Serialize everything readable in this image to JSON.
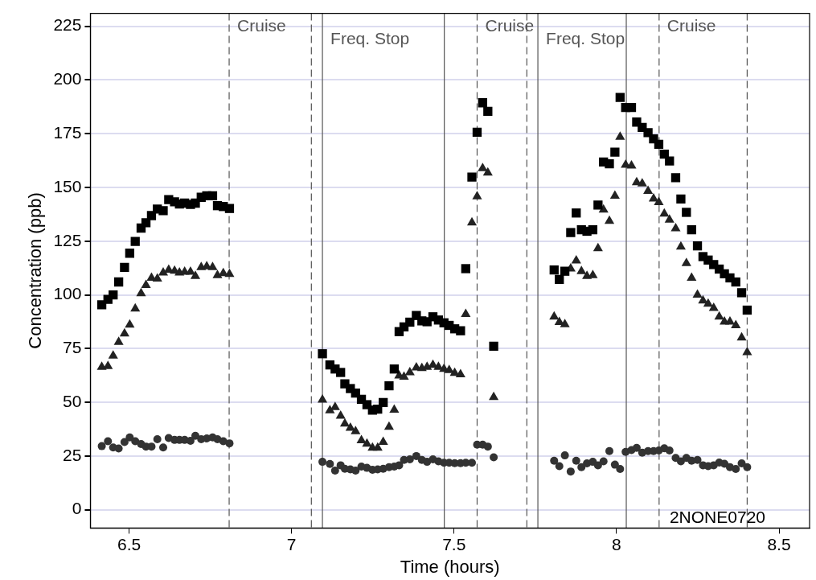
{
  "chart_data": {
    "type": "scatter",
    "xlabel": "Time (hours)",
    "ylabel": "Concentration (ppb)",
    "xlim": [
      6.381,
      8.594
    ],
    "ylim": [
      -8.5,
      231
    ],
    "xticks": [
      6.5,
      7,
      7.5,
      8,
      8.5
    ],
    "yticks": [
      0,
      25,
      50,
      75,
      100,
      125,
      150,
      175,
      200,
      225
    ],
    "grid": "y",
    "legend": false,
    "x": [
      6.416,
      6.435,
      6.451,
      6.468,
      6.486,
      6.502,
      6.519,
      6.537,
      6.552,
      6.569,
      6.587,
      6.605,
      6.622,
      6.64,
      6.655,
      6.671,
      6.689,
      6.704,
      6.722,
      6.739,
      6.757,
      6.772,
      6.79,
      6.809,
      7.095,
      7.118,
      7.134,
      7.151,
      7.164,
      7.181,
      7.197,
      7.215,
      7.232,
      7.249,
      7.265,
      7.282,
      7.3,
      7.316,
      7.331,
      7.346,
      7.364,
      7.384,
      7.401,
      7.417,
      7.435,
      7.452,
      7.469,
      7.485,
      7.502,
      7.52,
      7.536,
      7.555,
      7.571,
      7.588,
      7.604,
      7.622,
      7.808,
      7.824,
      7.841,
      7.859,
      7.876,
      7.892,
      7.909,
      7.927,
      7.943,
      7.96,
      7.978,
      7.995,
      8.011,
      8.028,
      8.046,
      8.062,
      8.079,
      8.097,
      8.114,
      8.13,
      8.147,
      8.163,
      8.182,
      8.198,
      8.215,
      8.231,
      8.249,
      8.266,
      8.282,
      8.299,
      8.316,
      8.332,
      8.349,
      8.367,
      8.385,
      8.402
    ],
    "series": [
      {
        "color": "#000000",
        "marker": "square",
        "values": [
          95.4,
          97.9,
          100,
          106,
          112.8,
          119.4,
          124.9,
          131.1,
          133.6,
          136.9,
          139.9,
          139.2,
          144.3,
          143.3,
          142.3,
          142.7,
          142.1,
          142.7,
          145.4,
          146.1,
          146.1,
          141.5,
          141.1,
          140.2,
          72.6,
          67.4,
          65.5,
          63.9,
          58.6,
          56.4,
          54.3,
          51.4,
          48.9,
          46.4,
          46.8,
          49.9,
          57.7,
          65.5,
          82.9,
          85.1,
          87.3,
          90.4,
          87.9,
          87.5,
          89.8,
          88.3,
          87,
          85.8,
          84.2,
          83.3,
          112.2,
          154.8,
          175.7,
          189.4,
          185.4,
          76.1,
          111.6,
          107.2,
          111,
          129,
          138.1,
          130.3,
          129.6,
          130.3,
          141.8,
          161.8,
          161,
          166.4,
          191.9,
          187.2,
          187.2,
          180.4,
          177.9,
          175.5,
          172.6,
          170.1,
          165.5,
          162.3,
          154.5,
          144.6,
          138.4,
          130.3,
          122.8,
          117.8,
          116.2,
          114.1,
          112,
          109.8,
          107.9,
          106,
          101,
          92.9
        ]
      },
      {
        "color": "#222222",
        "marker": "triangle",
        "values": [
          66.4,
          66.8,
          71.7,
          78,
          82,
          86.1,
          93.6,
          100.7,
          104.5,
          107.9,
          107.5,
          110.3,
          111.6,
          111.2,
          110.3,
          110.7,
          110.7,
          108.7,
          112.8,
          113.2,
          112.8,
          109.1,
          110,
          109.7,
          51.2,
          46.2,
          47.7,
          43.7,
          40,
          38.1,
          36.5,
          32.3,
          30.7,
          28.8,
          28.8,
          31.5,
          38.5,
          46.5,
          62.4,
          61.8,
          63.9,
          66.1,
          65.9,
          66.4,
          67.4,
          66.4,
          65.5,
          64.9,
          63.6,
          63,
          91,
          133.6,
          145.8,
          158.9,
          156.8,
          52.4,
          89.8,
          87.3,
          86.3,
          112.2,
          115.9,
          111,
          108.7,
          109.1,
          121.6,
          139.6,
          134.4,
          146.1,
          173.5,
          160.5,
          160.1,
          152.3,
          151.8,
          148.3,
          144.8,
          143.1,
          137.7,
          134.9,
          130.9,
          122.4,
          114.7,
          107.9,
          100,
          97.3,
          95.8,
          93.8,
          89.8,
          87.5,
          87.5,
          85.8,
          80.1,
          73.3
        ]
      },
      {
        "color": "#333333",
        "marker": "circle",
        "values": [
          29.6,
          31.9,
          29,
          28.5,
          31.5,
          33.7,
          31.9,
          30.6,
          29.4,
          29.4,
          32.8,
          29,
          33.4,
          32.5,
          32.5,
          32.5,
          32.1,
          34.4,
          32.8,
          33.2,
          33.7,
          32.8,
          31.9,
          30.9,
          22.3,
          21.3,
          18.2,
          20.7,
          19.1,
          18.8,
          18.2,
          20.1,
          19.5,
          18.6,
          18.8,
          19.1,
          19.8,
          20.1,
          20.7,
          23.2,
          23.5,
          25,
          23.2,
          22.3,
          23.5,
          22.5,
          21.9,
          21.9,
          21.7,
          21.7,
          21.9,
          21.9,
          30.3,
          30.3,
          29.4,
          24.4,
          22.8,
          20.3,
          25.3,
          17.8,
          22.8,
          19.8,
          21.6,
          22.3,
          20.7,
          22.5,
          27.3,
          21,
          19,
          26.9,
          27.8,
          28.8,
          26.6,
          27.3,
          27.3,
          27.6,
          28.6,
          27.6,
          24.1,
          22.5,
          24.1,
          22.8,
          23.2,
          20.7,
          20.3,
          20.7,
          22,
          21.4,
          19.8,
          19,
          21.6,
          19.8
        ]
      }
    ],
    "ref_lines": [
      {
        "axis": "x",
        "value": 6.808,
        "color": "#555555",
        "line_style": "dashed",
        "label": "Cruise"
      },
      {
        "axis": "x",
        "value": 7.061,
        "color": "#555555",
        "line_style": "dashed"
      },
      {
        "axis": "x",
        "value": 7.095,
        "color": "#555555",
        "line_style": "solid",
        "label": "Freq. Stop"
      },
      {
        "axis": "x",
        "value": 7.47,
        "color": "#555555",
        "line_style": "solid"
      },
      {
        "axis": "x",
        "value": 7.571,
        "color": "#555555",
        "line_style": "dashed",
        "label": "Cruise"
      },
      {
        "axis": "x",
        "value": 7.724,
        "color": "#555555",
        "line_style": "dashed"
      },
      {
        "axis": "x",
        "value": 7.758,
        "color": "#555555",
        "line_style": "solid",
        "label": "Freq. Stop"
      },
      {
        "axis": "x",
        "value": 8.03,
        "color": "#555555",
        "line_style": "solid"
      },
      {
        "axis": "x",
        "value": 8.131,
        "color": "#555555",
        "line_style": "dashed",
        "label": "Cruise"
      },
      {
        "axis": "x",
        "value": 8.402,
        "color": "#555555",
        "line_style": "dashed"
      }
    ],
    "annotations": [
      "2NONE0720"
    ]
  }
}
